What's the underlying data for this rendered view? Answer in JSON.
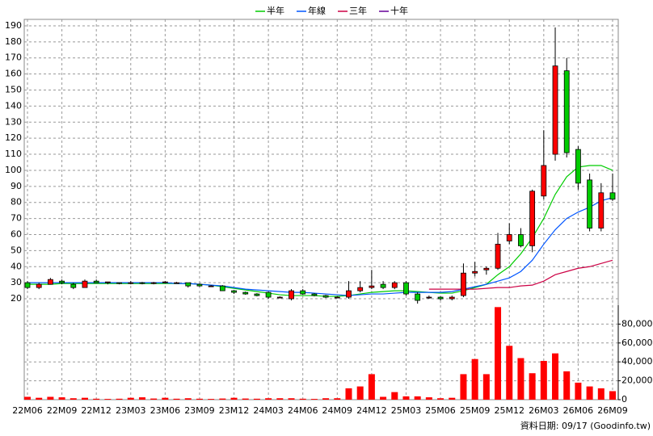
{
  "chart_data": [
    {
      "type": "candlestick",
      "categories": [
        "22M06",
        null,
        null,
        "22M09",
        null,
        null,
        "22M12",
        null,
        null,
        "23M03",
        null,
        null,
        "23M06",
        null,
        null,
        "23M09",
        null,
        null,
        "23M12",
        null,
        null,
        "24M03",
        null,
        null,
        "24M06",
        null,
        null,
        "24M09",
        null,
        null,
        "24M12",
        null,
        null,
        "25M03",
        null,
        null,
        "25M06",
        null,
        null,
        "25M09",
        null,
        null,
        "25M12",
        null,
        null,
        "26M03",
        null,
        null,
        "26M06",
        null,
        null,
        "26M09"
      ],
      "open": [
        30,
        27,
        29,
        31,
        29,
        27,
        31,
        30,
        30,
        29.5,
        30,
        29.5,
        30,
        30,
        30,
        29,
        28,
        28,
        25,
        24,
        23,
        24,
        21,
        20,
        25,
        23,
        22,
        21,
        21,
        25,
        27,
        29,
        27,
        30,
        23,
        21,
        21,
        20,
        22,
        36,
        38,
        39,
        56,
        60,
        53,
        84,
        110,
        162,
        113,
        94,
        64,
        86
      ],
      "high": [
        31,
        30,
        33,
        32,
        30,
        32,
        32,
        30.5,
        30,
        31,
        30.5,
        30.5,
        31,
        30.5,
        30,
        29.5,
        28.5,
        28.5,
        25.5,
        24.5,
        23.5,
        24.5,
        21.5,
        26,
        26,
        23.5,
        22.5,
        21.5,
        31,
        31,
        38,
        31,
        31,
        31,
        24,
        22,
        21.5,
        22,
        42,
        43,
        40,
        61,
        67,
        64,
        88,
        125,
        189,
        170,
        115,
        98,
        92,
        98
      ],
      "low": [
        26,
        26,
        29,
        29,
        26,
        27,
        30,
        29,
        29,
        29,
        29,
        29,
        29.5,
        29.5,
        27,
        27.5,
        27.5,
        25,
        23,
        22.5,
        21.5,
        20,
        20.5,
        19,
        22.5,
        21.5,
        20.5,
        20.5,
        20,
        24,
        26,
        26,
        26,
        22,
        17,
        20,
        19,
        19,
        21,
        34,
        35,
        38,
        54,
        52,
        49,
        82,
        106,
        108,
        88,
        62,
        62,
        81
      ],
      "close": [
        27,
        29,
        32,
        30,
        27,
        31,
        30,
        30.5,
        29.5,
        30,
        29.5,
        30,
        30.5,
        30,
        28,
        28,
        28,
        25,
        24,
        23,
        22,
        21,
        21,
        25,
        23,
        22,
        21,
        21,
        25,
        27,
        28,
        27,
        30,
        23,
        19,
        21,
        20,
        21,
        36,
        37,
        39,
        54,
        60,
        53,
        87,
        103,
        165,
        111,
        92,
        64,
        86,
        82
      ],
      "up_color": "#ff0000",
      "down_color": "#00cc00",
      "series": [
        {
          "name": "半年",
          "color": "#00cc00",
          "values": [
            29,
            29,
            29,
            29.5,
            29.5,
            29.5,
            29.5,
            29.5,
            29.5,
            29.5,
            29.5,
            29.5,
            29.5,
            29.5,
            29.5,
            29,
            28.5,
            27.5,
            26.5,
            25.5,
            24.5,
            23.5,
            22.5,
            22,
            22,
            22,
            21.5,
            21.5,
            22,
            23,
            24,
            24.5,
            25,
            25,
            24.5,
            24,
            23.5,
            23.5,
            25,
            27,
            29,
            35,
            40,
            48,
            58,
            70,
            85,
            96,
            102,
            103,
            103,
            100
          ]
        },
        {
          "name": "年線",
          "color": "#0055ff",
          "values": [
            30,
            30,
            30,
            30,
            30,
            30,
            30,
            30,
            30,
            30,
            30,
            30,
            30,
            29.5,
            29.5,
            29,
            28.5,
            28,
            27,
            26,
            25.5,
            25,
            24.5,
            24,
            24,
            23.5,
            23,
            22.5,
            22,
            22.5,
            23,
            23,
            23.5,
            24,
            24,
            24,
            24,
            24.5,
            26,
            27.5,
            29,
            31,
            33,
            37,
            44,
            54,
            63,
            70,
            74,
            77,
            81,
            83
          ]
        },
        {
          "name": "三年",
          "color": "#cc0044",
          "values": [
            null,
            null,
            null,
            null,
            null,
            null,
            null,
            null,
            null,
            null,
            null,
            null,
            null,
            null,
            null,
            null,
            null,
            null,
            null,
            null,
            null,
            null,
            null,
            null,
            null,
            null,
            null,
            null,
            null,
            null,
            null,
            null,
            null,
            null,
            null,
            26,
            26,
            26,
            26,
            26,
            26.5,
            27,
            27,
            28,
            28.5,
            31,
            35,
            37,
            39,
            40,
            42,
            44
          ]
        },
        {
          "name": "十年",
          "color": "#660099",
          "values": [
            null,
            null,
            null,
            null,
            null,
            null,
            null,
            null,
            null,
            null,
            null,
            null,
            null,
            null,
            null,
            null,
            null,
            null,
            null,
            null,
            null,
            null,
            null,
            null,
            null,
            null,
            null,
            null,
            null,
            null,
            null,
            null,
            null,
            null,
            null,
            null,
            null,
            null,
            null,
            null,
            null,
            null,
            null,
            null,
            null,
            null,
            null,
            null,
            null,
            null,
            null,
            null
          ]
        }
      ],
      "ylim": [
        16,
        194
      ],
      "yticks": [
        20,
        30,
        40,
        50,
        60,
        70,
        80,
        90,
        100,
        110,
        120,
        130,
        140,
        150,
        160,
        170,
        180,
        190
      ],
      "grid": true
    },
    {
      "type": "bar",
      "values": [
        3000,
        2000,
        3000,
        2500,
        1500,
        2000,
        1000,
        800,
        1000,
        2000,
        2500,
        1200,
        2000,
        1000,
        1500,
        1000,
        800,
        1200,
        2000,
        1200,
        1000,
        1500,
        1500,
        1500,
        1000,
        800,
        1500,
        1500,
        12000,
        14000,
        27000,
        3000,
        8000,
        3500,
        3500,
        2500,
        1500,
        2000,
        27000,
        43000,
        27000,
        98000,
        57000,
        44000,
        28000,
        41000,
        49000,
        30000,
        18000,
        14000,
        12000,
        9000
      ],
      "color": "#ff0000",
      "ylim": [
        0,
        100000
      ],
      "yticks": [
        0,
        {
          "value": 20000,
          "label": "20,000"
        },
        {
          "value": 40000,
          "label": "40,000"
        },
        {
          "value": 60000,
          "label": "60,000"
        },
        {
          "value": 80000,
          "label": "80,000"
        }
      ],
      "grid": true
    }
  ],
  "footer": "資料日期: 09/17 (Goodinfo.tw)"
}
